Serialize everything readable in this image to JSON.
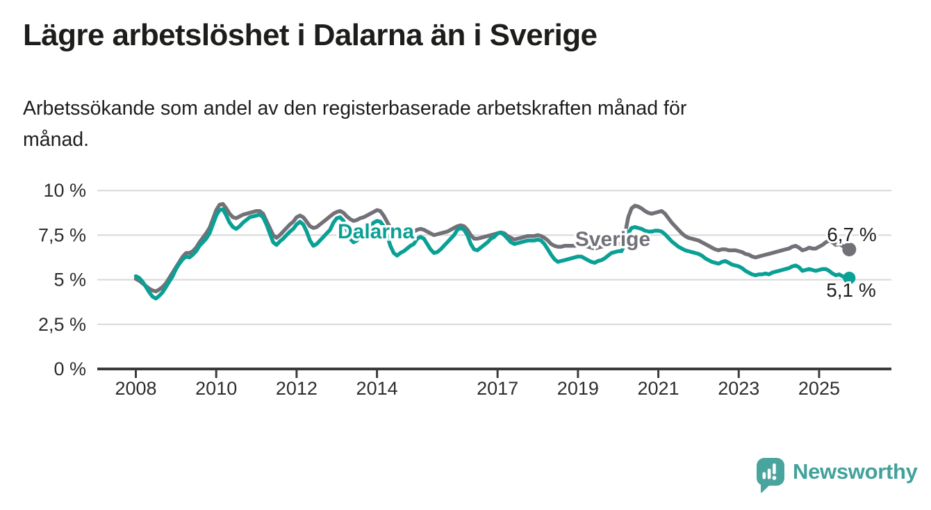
{
  "header": {
    "title": "Lägre arbetslöshet i Dalarna än i Sverige",
    "subtitle": "Arbetssökande som andel av den registerbaserade arbetskraften månad för månad."
  },
  "footer": {
    "brand": "Newsworthy"
  },
  "colors": {
    "dalarna": "#0aa096",
    "sverige": "#737178",
    "axis": "#3b3b3b",
    "grid": "#d8d8d8",
    "text": "#1d1d1b",
    "tick_text": "#2d2d2d",
    "brand_teal": "#4aa49e",
    "brand_text": "#41a19b"
  },
  "chart_data": {
    "type": "line",
    "unit": "%",
    "frequency": "monthly",
    "x_start": "2008-01",
    "x_end": "2025-10",
    "ylim": [
      0,
      10.5
    ],
    "grid": true,
    "legend_position": "inline-labels",
    "y_ticks": [
      {
        "value": 0,
        "label": "0 %"
      },
      {
        "value": 2.5,
        "label": "2,5 %"
      },
      {
        "value": 5,
        "label": "5 %"
      },
      {
        "value": 7.5,
        "label": "7,5 %"
      },
      {
        "value": 10,
        "label": "10 %"
      }
    ],
    "x_ticks": [
      {
        "year": 2008,
        "label": "2008"
      },
      {
        "year": 2010,
        "label": "2010"
      },
      {
        "year": 2012,
        "label": "2012"
      },
      {
        "year": 2014,
        "label": "2014"
      },
      {
        "year": 2017,
        "label": "2017"
      },
      {
        "year": 2019,
        "label": "2019"
      },
      {
        "year": 2021,
        "label": "2021"
      },
      {
        "year": 2023,
        "label": "2023"
      },
      {
        "year": 2025,
        "label": "2025"
      }
    ],
    "series": [
      {
        "name": "Sverige",
        "color": "#737178",
        "end_label": "6,7 %",
        "last_value": 6.7,
        "values": [
          5.05,
          4.95,
          4.8,
          4.65,
          4.5,
          4.4,
          4.35,
          4.45,
          4.6,
          4.8,
          5.1,
          5.4,
          5.7,
          6.0,
          6.3,
          6.5,
          6.5,
          6.6,
          6.8,
          7.1,
          7.35,
          7.6,
          7.9,
          8.4,
          8.9,
          9.2,
          9.25,
          9.0,
          8.7,
          8.5,
          8.45,
          8.55,
          8.65,
          8.7,
          8.75,
          8.8,
          8.85,
          8.85,
          8.7,
          8.3,
          7.9,
          7.5,
          7.35,
          7.5,
          7.7,
          7.9,
          8.1,
          8.25,
          8.5,
          8.6,
          8.5,
          8.25,
          8.0,
          7.9,
          7.95,
          8.1,
          8.25,
          8.4,
          8.55,
          8.7,
          8.8,
          8.85,
          8.75,
          8.55,
          8.4,
          8.3,
          8.35,
          8.45,
          8.5,
          8.6,
          8.7,
          8.8,
          8.9,
          8.85,
          8.6,
          8.25,
          7.9,
          7.6,
          7.5,
          7.55,
          7.6,
          7.65,
          7.7,
          7.7,
          7.8,
          7.85,
          7.8,
          7.7,
          7.6,
          7.5,
          7.55,
          7.6,
          7.65,
          7.7,
          7.8,
          7.9,
          8.0,
          8.05,
          8.0,
          7.8,
          7.5,
          7.3,
          7.3,
          7.35,
          7.4,
          7.45,
          7.5,
          7.55,
          7.6,
          7.65,
          7.6,
          7.45,
          7.35,
          7.25,
          7.3,
          7.35,
          7.4,
          7.45,
          7.45,
          7.45,
          7.5,
          7.45,
          7.35,
          7.2,
          7.0,
          6.9,
          6.85,
          6.85,
          6.9,
          6.9,
          6.9,
          6.9,
          6.95,
          6.95,
          6.9,
          6.85,
          6.8,
          6.75,
          6.8,
          6.85,
          6.9,
          6.95,
          7.0,
          7.05,
          7.0,
          7.05,
          7.5,
          8.5,
          9.0,
          9.15,
          9.1,
          9.0,
          8.85,
          8.75,
          8.7,
          8.75,
          8.8,
          8.85,
          8.7,
          8.45,
          8.2,
          8.0,
          7.8,
          7.6,
          7.45,
          7.35,
          7.3,
          7.25,
          7.2,
          7.1,
          7.0,
          6.9,
          6.8,
          6.7,
          6.65,
          6.7,
          6.7,
          6.65,
          6.65,
          6.65,
          6.6,
          6.55,
          6.45,
          6.4,
          6.3,
          6.25,
          6.3,
          6.35,
          6.4,
          6.45,
          6.5,
          6.55,
          6.6,
          6.65,
          6.7,
          6.75,
          6.85,
          6.9,
          6.8,
          6.65,
          6.7,
          6.8,
          6.75,
          6.75,
          6.85,
          6.95,
          7.1,
          7.2,
          7.1,
          6.95,
          7.0,
          6.9,
          6.75,
          6.7
        ]
      },
      {
        "name": "Dalarna",
        "color": "#0aa096",
        "end_label": "5,1 %",
        "last_value": 5.1,
        "values": [
          5.2,
          5.1,
          4.9,
          4.6,
          4.3,
          4.05,
          3.95,
          4.1,
          4.3,
          4.6,
          4.9,
          5.2,
          5.6,
          5.9,
          6.15,
          6.3,
          6.25,
          6.4,
          6.6,
          6.9,
          7.1,
          7.3,
          7.6,
          8.1,
          8.6,
          8.9,
          8.95,
          8.6,
          8.2,
          7.95,
          7.85,
          8.0,
          8.2,
          8.35,
          8.5,
          8.55,
          8.6,
          8.65,
          8.5,
          8.1,
          7.6,
          7.1,
          6.95,
          7.15,
          7.3,
          7.5,
          7.7,
          7.85,
          8.1,
          8.25,
          8.1,
          7.7,
          7.2,
          6.9,
          7.0,
          7.2,
          7.4,
          7.6,
          7.8,
          8.2,
          8.45,
          8.5,
          8.3,
          7.8,
          7.3,
          7.1,
          7.2,
          7.4,
          7.6,
          7.8,
          8.0,
          8.2,
          8.3,
          8.25,
          8.0,
          7.5,
          6.9,
          6.5,
          6.35,
          6.5,
          6.6,
          6.75,
          6.9,
          7.0,
          7.3,
          7.4,
          7.3,
          7.0,
          6.7,
          6.5,
          6.55,
          6.7,
          6.9,
          7.1,
          7.3,
          7.5,
          7.8,
          7.9,
          7.8,
          7.5,
          7.0,
          6.7,
          6.65,
          6.8,
          6.95,
          7.1,
          7.3,
          7.4,
          7.6,
          7.65,
          7.5,
          7.3,
          7.1,
          7.0,
          7.05,
          7.1,
          7.15,
          7.2,
          7.2,
          7.2,
          7.25,
          7.2,
          7.0,
          6.7,
          6.4,
          6.15,
          6.0,
          6.05,
          6.1,
          6.15,
          6.2,
          6.25,
          6.3,
          6.3,
          6.2,
          6.1,
          6.0,
          5.95,
          6.05,
          6.1,
          6.2,
          6.35,
          6.5,
          6.55,
          6.6,
          6.6,
          7.0,
          7.6,
          7.9,
          7.95,
          7.9,
          7.85,
          7.75,
          7.7,
          7.7,
          7.75,
          7.75,
          7.7,
          7.55,
          7.35,
          7.15,
          7.0,
          6.85,
          6.75,
          6.65,
          6.6,
          6.55,
          6.5,
          6.45,
          6.35,
          6.2,
          6.1,
          6.0,
          5.95,
          5.9,
          6.0,
          6.05,
          5.95,
          5.85,
          5.8,
          5.75,
          5.65,
          5.5,
          5.4,
          5.3,
          5.25,
          5.3,
          5.3,
          5.35,
          5.3,
          5.4,
          5.45,
          5.5,
          5.55,
          5.6,
          5.65,
          5.75,
          5.8,
          5.7,
          5.5,
          5.55,
          5.6,
          5.55,
          5.5,
          5.55,
          5.6,
          5.6,
          5.5,
          5.35,
          5.25,
          5.3,
          5.2,
          5.05,
          5.1
        ]
      }
    ]
  }
}
